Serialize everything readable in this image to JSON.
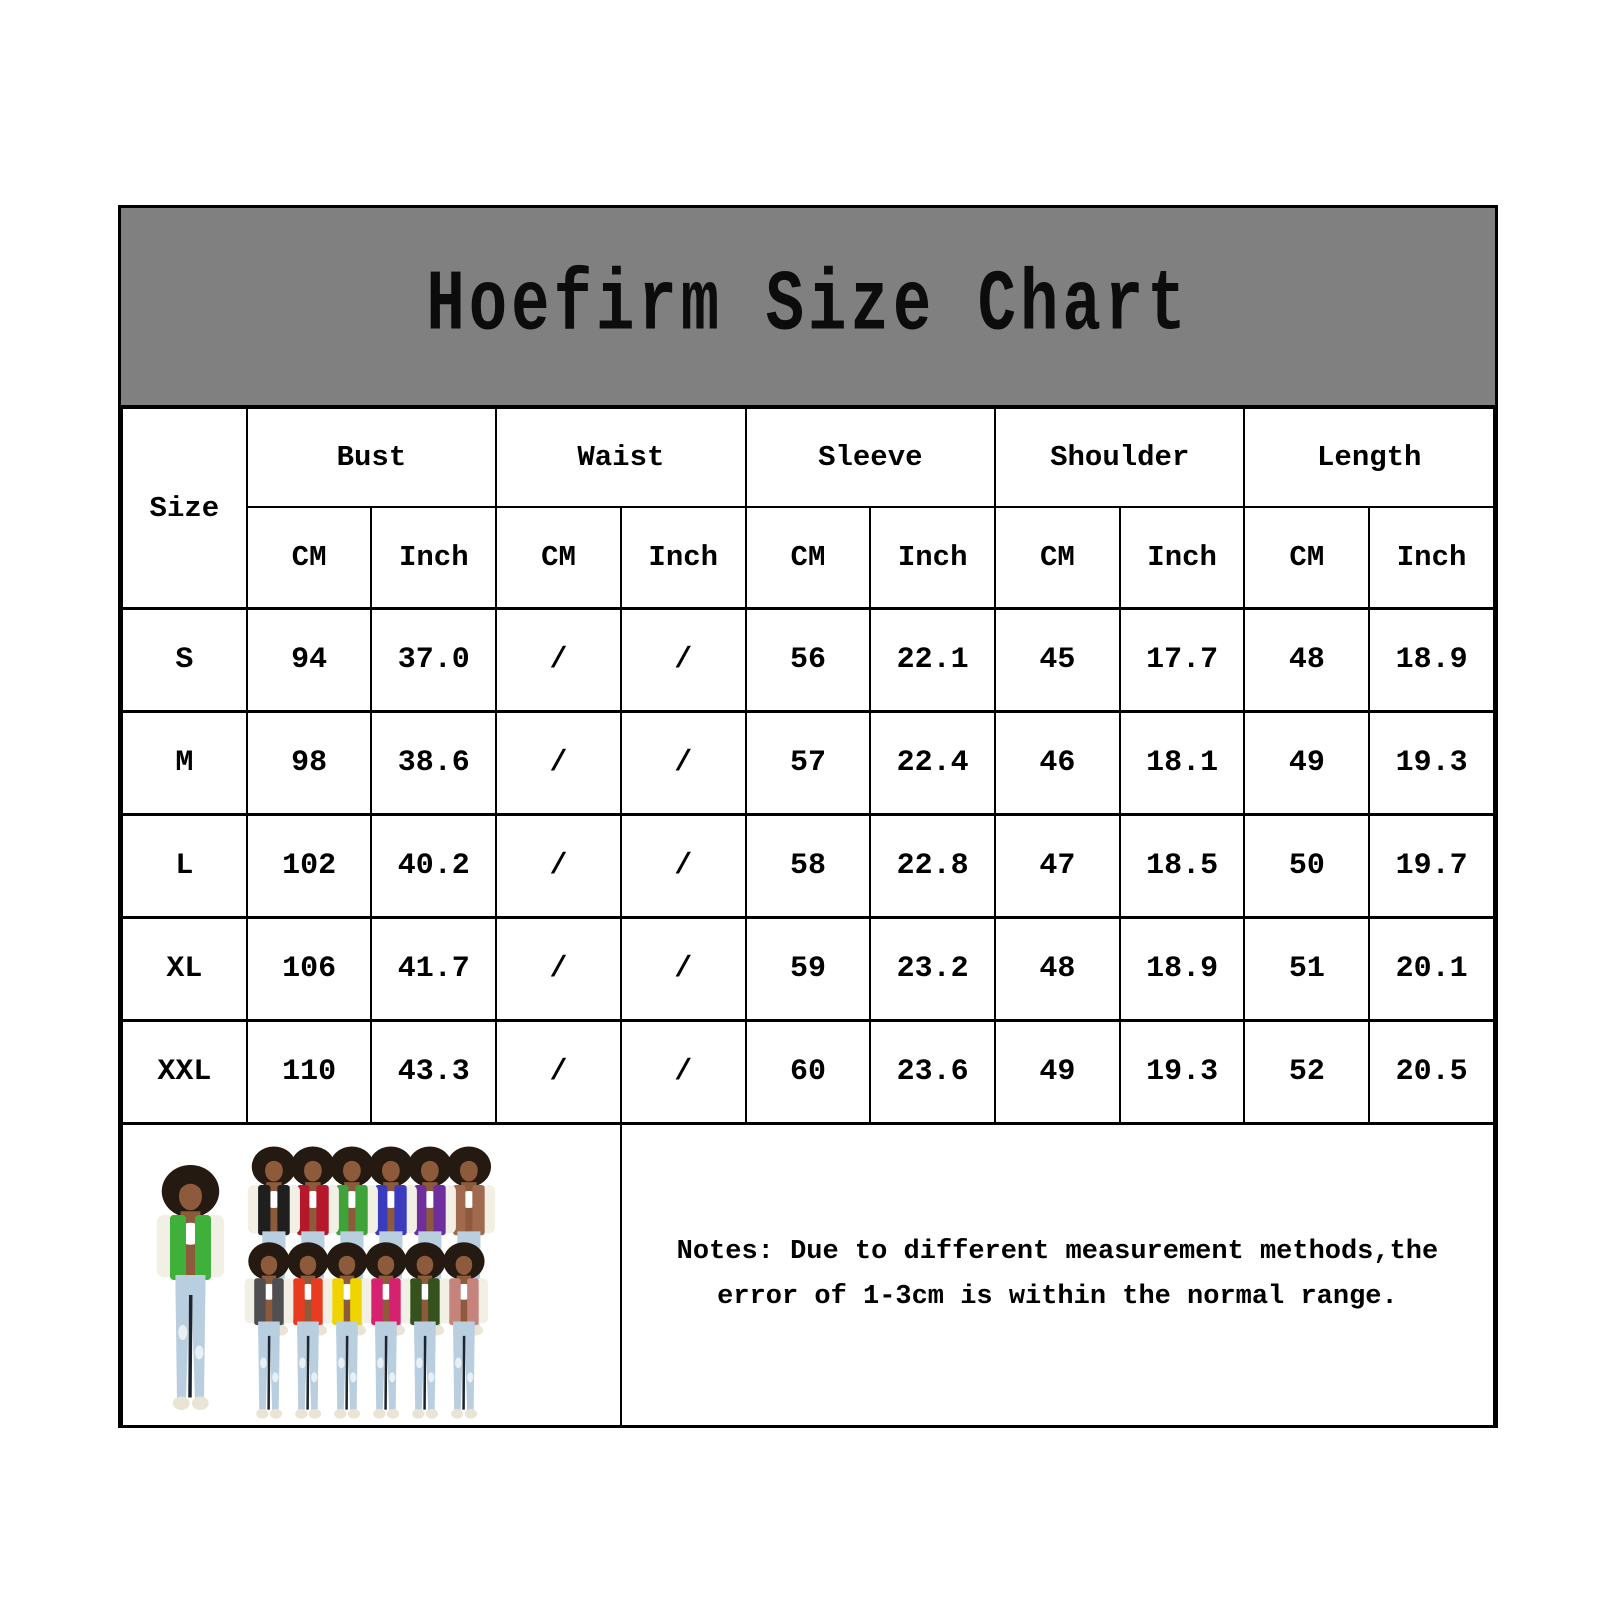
{
  "chart_data": {
    "type": "table",
    "title": "Hoefirm Size Chart",
    "header": {
      "size_label": "Size",
      "groups": [
        "Bust",
        "Waist",
        "Sleeve",
        "Shoulder",
        "Length"
      ],
      "unit_cm": "CM",
      "unit_inch": "Inch"
    },
    "columns": [
      "Size",
      "Bust CM",
      "Bust Inch",
      "Waist CM",
      "Waist Inch",
      "Sleeve CM",
      "Sleeve Inch",
      "Shoulder CM",
      "Shoulder Inch",
      "Length CM",
      "Length Inch"
    ],
    "rows": [
      [
        "S",
        "94",
        "37.0",
        "/",
        "/",
        "56",
        "22.1",
        "45",
        "17.7",
        "48",
        "18.9"
      ],
      [
        "M",
        "98",
        "38.6",
        "/",
        "/",
        "57",
        "22.4",
        "46",
        "18.1",
        "49",
        "19.3"
      ],
      [
        "L",
        "102",
        "40.2",
        "/",
        "/",
        "58",
        "22.8",
        "47",
        "18.5",
        "50",
        "19.7"
      ],
      [
        "XL",
        "106",
        "41.7",
        "/",
        "/",
        "59",
        "23.2",
        "48",
        "18.9",
        "51",
        "20.1"
      ],
      [
        "XXL",
        "110",
        "43.3",
        "/",
        "/",
        "60",
        "23.6",
        "49",
        "19.3",
        "52",
        "20.5"
      ]
    ],
    "notes": "Notes: Due to different measurement methods,the error of 1-3cm is within the normal range."
  },
  "colors": {
    "page_bg": "#ffffff",
    "title_band_bg": "#808080",
    "border": "#000000",
    "text": "#000000"
  },
  "product_collage": {
    "label": "models wearing varsity jackets collage",
    "hero_jacket": "#3fb03a",
    "row1_jackets": [
      "#1f1f1f",
      "#b5182b",
      "#3fa33a",
      "#3a3bbf",
      "#6f2e9e",
      "#a06a4f"
    ],
    "row2_jackets": [
      "#4f4f52",
      "#e83c20",
      "#f0d400",
      "#d6216f",
      "#35511d",
      "#c5837b"
    ],
    "sleeve": "#f2efe4",
    "jeans": "#b9cfdf",
    "jeans_shadow": "#1c2630",
    "rip": "#e9f0f5",
    "hair": "#241a12",
    "skin": "#8d5a3b",
    "top": "#ffffff",
    "shoes": "#eae4d4"
  }
}
